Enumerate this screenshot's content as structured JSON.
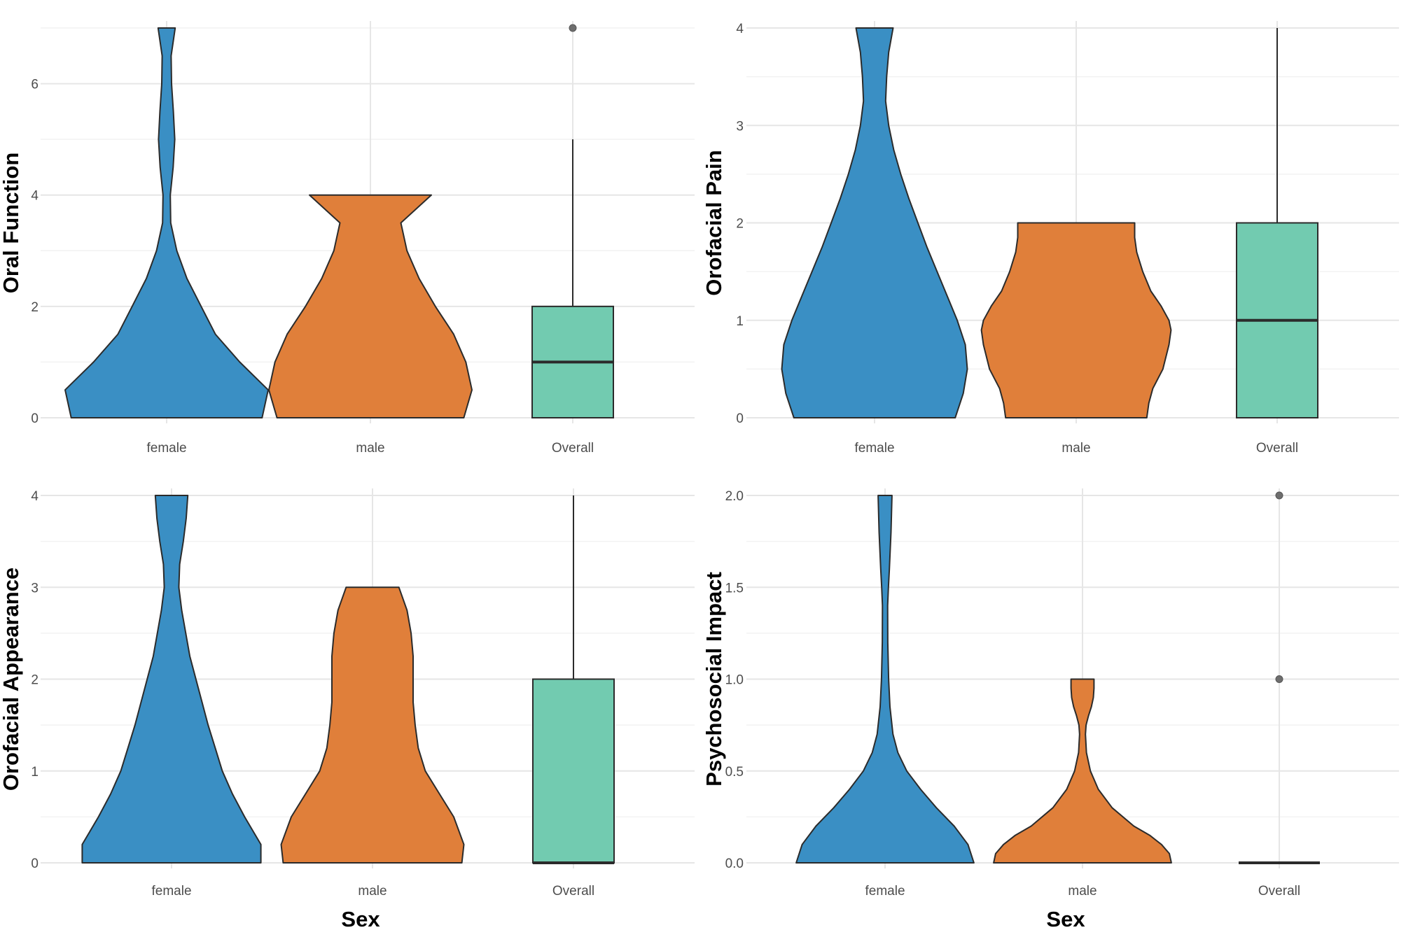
{
  "chart_data": [
    {
      "type": "violin+box",
      "ylabel": "Oral Function",
      "xlabel": "",
      "categories": [
        "female",
        "male",
        "Overall"
      ],
      "ylim": [
        0,
        7
      ],
      "yticks": [
        0,
        2,
        4,
        6
      ],
      "yticks_minor": [
        1,
        3,
        5,
        7
      ],
      "violins": [
        {
          "name": "female",
          "color": "#3a8fc4",
          "profile": [
            [
              0,
              0.47
            ],
            [
              0.5,
              0.5
            ],
            [
              1,
              0.36
            ],
            [
              1.5,
              0.24
            ],
            [
              2,
              0.17
            ],
            [
              2.5,
              0.1
            ],
            [
              3,
              0.05
            ],
            [
              3.5,
              0.02
            ],
            [
              4,
              0.018
            ],
            [
              4.5,
              0.032
            ],
            [
              5,
              0.04
            ],
            [
              5.5,
              0.033
            ],
            [
              6,
              0.024
            ],
            [
              6.5,
              0.022
            ],
            [
              7,
              0.042
            ]
          ]
        },
        {
          "name": "male",
          "color": "#e07f3a",
          "profile": [
            [
              0,
              0.46
            ],
            [
              0.5,
              0.5
            ],
            [
              1,
              0.47
            ],
            [
              1.5,
              0.41
            ],
            [
              2,
              0.32
            ],
            [
              2.5,
              0.24
            ],
            [
              3,
              0.18
            ],
            [
              3.5,
              0.15
            ],
            [
              4,
              0.3
            ]
          ]
        }
      ],
      "boxplot": {
        "name": "Overall",
        "color": "#72cbb0",
        "q1": 0,
        "median": 1,
        "q3": 2,
        "whisker_low": 0,
        "whisker_high": 5,
        "outliers": [
          7
        ]
      }
    },
    {
      "type": "violin+box",
      "ylabel": "Orofacial Pain",
      "xlabel": "",
      "categories": [
        "female",
        "male",
        "Overall"
      ],
      "ylim": [
        0,
        4
      ],
      "yticks": [
        0,
        1,
        2,
        3,
        4
      ],
      "yticks_minor": [
        0.5,
        1.5,
        2.5,
        3.5
      ],
      "violins": [
        {
          "name": "female",
          "color": "#3a8fc4",
          "profile": [
            [
              0,
              0.4
            ],
            [
              0.25,
              0.44
            ],
            [
              0.5,
              0.46
            ],
            [
              0.75,
              0.45
            ],
            [
              1,
              0.41
            ],
            [
              1.25,
              0.36
            ],
            [
              1.5,
              0.31
            ],
            [
              1.75,
              0.26
            ],
            [
              2,
              0.215
            ],
            [
              2.25,
              0.17
            ],
            [
              2.5,
              0.13
            ],
            [
              2.75,
              0.095
            ],
            [
              3,
              0.07
            ],
            [
              3.25,
              0.055
            ],
            [
              3.5,
              0.06
            ],
            [
              3.75,
              0.07
            ],
            [
              4,
              0.092
            ]
          ]
        },
        {
          "name": "male",
          "color": "#e07f3a",
          "profile": [
            [
              0,
              0.35
            ],
            [
              0.15,
              0.36
            ],
            [
              0.3,
              0.38
            ],
            [
              0.5,
              0.43
            ],
            [
              0.75,
              0.46
            ],
            [
              0.9,
              0.47
            ],
            [
              1,
              0.46
            ],
            [
              1.15,
              0.42
            ],
            [
              1.3,
              0.37
            ],
            [
              1.5,
              0.33
            ],
            [
              1.7,
              0.3
            ],
            [
              1.85,
              0.29
            ],
            [
              2,
              0.29
            ]
          ]
        }
      ],
      "boxplot": {
        "name": "Overall",
        "color": "#72cbb0",
        "q1": 0,
        "median": 1,
        "q3": 2,
        "whisker_low": 0,
        "whisker_high": 4,
        "outliers": []
      }
    },
    {
      "type": "violin+box",
      "ylabel": "Orofacial Appearance",
      "xlabel": "Sex",
      "categories": [
        "female",
        "male",
        "Overall"
      ],
      "ylim": [
        0,
        4
      ],
      "yticks": [
        0,
        1,
        2,
        3,
        4
      ],
      "yticks_minor": [
        0.5,
        1.5,
        2.5,
        3.5
      ],
      "violins": [
        {
          "name": "female",
          "color": "#3a8fc4",
          "profile": [
            [
              0,
              0.44
            ],
            [
              0.2,
              0.44
            ],
            [
              0.5,
              0.36
            ],
            [
              0.75,
              0.3
            ],
            [
              1,
              0.25
            ],
            [
              1.25,
              0.215
            ],
            [
              1.5,
              0.18
            ],
            [
              1.75,
              0.15
            ],
            [
              2,
              0.12
            ],
            [
              2.25,
              0.09
            ],
            [
              2.5,
              0.07
            ],
            [
              2.75,
              0.05
            ],
            [
              3,
              0.036
            ],
            [
              3.25,
              0.04
            ],
            [
              3.5,
              0.058
            ],
            [
              3.75,
              0.072
            ],
            [
              4,
              0.08
            ]
          ]
        },
        {
          "name": "male",
          "color": "#e07f3a",
          "profile": [
            [
              0,
              0.44
            ],
            [
              0.2,
              0.45
            ],
            [
              0.5,
              0.4
            ],
            [
              0.75,
              0.33
            ],
            [
              1,
              0.26
            ],
            [
              1.25,
              0.225
            ],
            [
              1.5,
              0.21
            ],
            [
              1.75,
              0.2
            ],
            [
              2,
              0.2
            ],
            [
              2.25,
              0.2
            ],
            [
              2.5,
              0.19
            ],
            [
              2.75,
              0.17
            ],
            [
              3,
              0.13
            ]
          ]
        }
      ],
      "boxplot": {
        "name": "Overall",
        "color": "#72cbb0",
        "q1": 0,
        "median": 0,
        "q3": 2,
        "whisker_low": 0,
        "whisker_high": 4,
        "outliers": []
      }
    },
    {
      "type": "violin+box",
      "ylabel": "Psychosocial Impact",
      "xlabel": "Sex",
      "categories": [
        "female",
        "male",
        "Overall"
      ],
      "ylim": [
        0,
        2
      ],
      "yticks": [
        "0.0",
        "0.5",
        "1.0",
        "1.5",
        "2.0"
      ],
      "yticks_minor": [
        0.25,
        0.75,
        1.25,
        1.75
      ],
      "violins": [
        {
          "name": "female",
          "color": "#3a8fc4",
          "profile": [
            [
              0,
              0.45
            ],
            [
              0.1,
              0.42
            ],
            [
              0.2,
              0.35
            ],
            [
              0.3,
              0.26
            ],
            [
              0.4,
              0.18
            ],
            [
              0.5,
              0.11
            ],
            [
              0.6,
              0.065
            ],
            [
              0.7,
              0.04
            ],
            [
              0.85,
              0.025
            ],
            [
              1,
              0.018
            ],
            [
              1.2,
              0.014
            ],
            [
              1.4,
              0.013
            ],
            [
              1.5,
              0.017
            ],
            [
              1.6,
              0.022
            ],
            [
              1.8,
              0.03
            ],
            [
              2,
              0.035
            ]
          ]
        },
        {
          "name": "male",
          "color": "#e07f3a",
          "profile": [
            [
              0,
              0.45
            ],
            [
              0.05,
              0.44
            ],
            [
              0.1,
              0.4
            ],
            [
              0.15,
              0.34
            ],
            [
              0.2,
              0.26
            ],
            [
              0.3,
              0.15
            ],
            [
              0.4,
              0.08
            ],
            [
              0.5,
              0.04
            ],
            [
              0.6,
              0.02
            ],
            [
              0.7,
              0.015
            ],
            [
              0.75,
              0.018
            ],
            [
              0.8,
              0.03
            ],
            [
              0.85,
              0.045
            ],
            [
              0.9,
              0.055
            ],
            [
              0.95,
              0.058
            ],
            [
              1,
              0.058
            ]
          ]
        }
      ],
      "boxplot": {
        "name": "Overall",
        "color": "#72cbb0",
        "q1": 0,
        "median": 0,
        "q3": 0,
        "whisker_low": 0,
        "whisker_high": 0,
        "outliers": [
          1,
          2
        ]
      }
    }
  ]
}
